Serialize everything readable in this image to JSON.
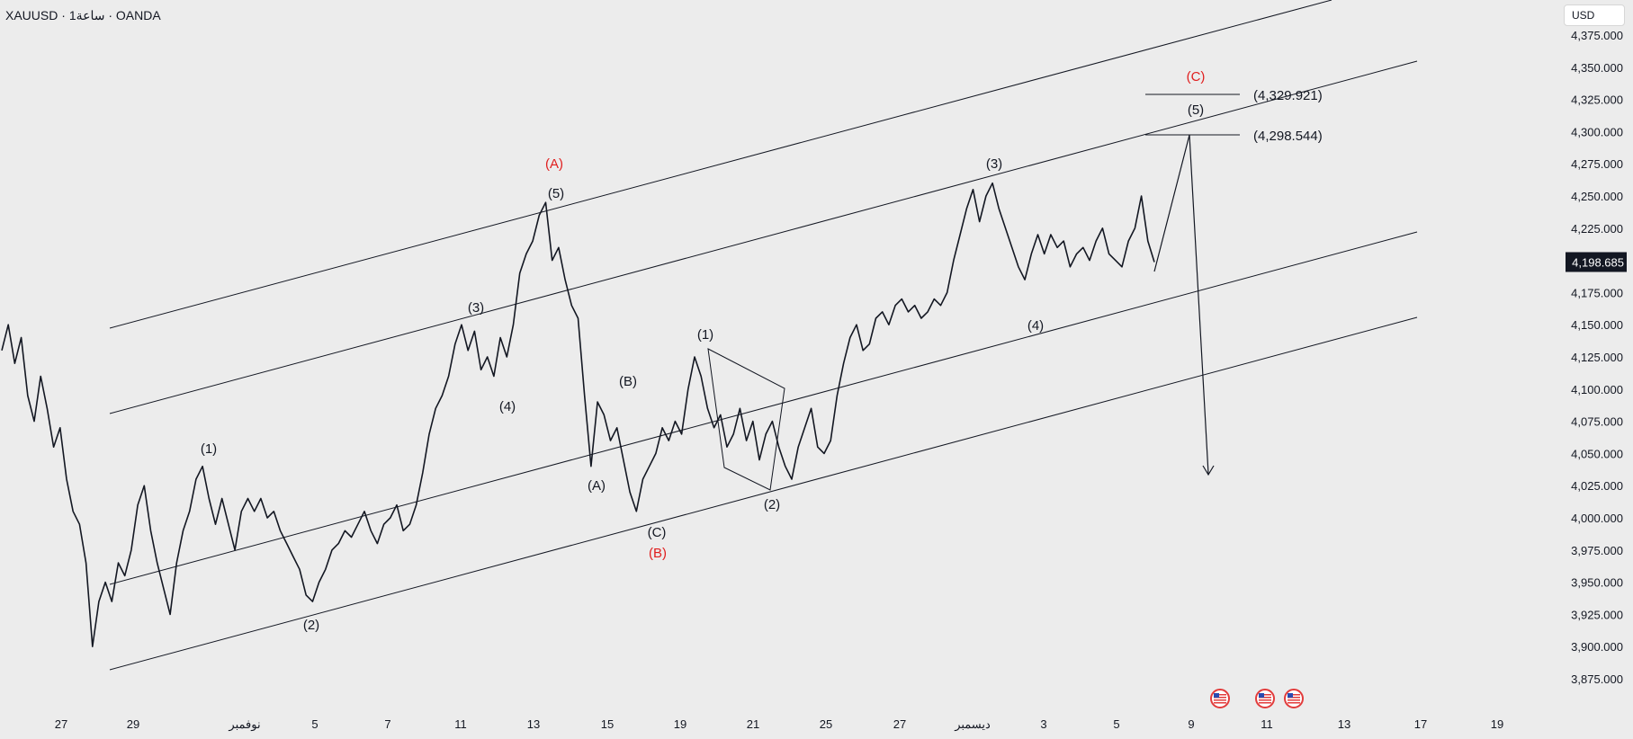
{
  "header": {
    "symbol": "XAUUSD",
    "sep1": "·",
    "interval": "1ساعة",
    "sep2": "·",
    "broker": "OANDA"
  },
  "currency_label": "USD",
  "last_price_label": "4,198.685",
  "colors": {
    "background": "#ececec",
    "price_line": "#131722",
    "drawing": "#131722",
    "label_black": "#131722",
    "label_red": "#e01e1e",
    "axis_text": "#131722",
    "last_price_bg": "#131722",
    "last_price_text": "#ffffff",
    "event_icon_flag": "#e23b3b"
  },
  "chart_data": {
    "type": "line",
    "x_axis_ticks": [
      "27",
      "29",
      "نوفمبر",
      "5",
      "7",
      "11",
      "13",
      "15",
      "19",
      "21",
      "25",
      "27",
      "ديسمبر",
      "3",
      "5",
      "9",
      "11",
      "13",
      "17",
      "19"
    ],
    "y_axis_ticks": [
      "4,375.000",
      "4,350.000",
      "4,325.000",
      "4,300.000",
      "4,275.000",
      "4,250.000",
      "4,225.000",
      "4,200.000",
      "4,175.000",
      "4,150.000",
      "4,125.000",
      "4,100.000",
      "4,075.000",
      "4,050.000",
      "4,025.000",
      "4,000.000",
      "3,975.000",
      "3,950.000",
      "3,925.000",
      "3,900.000",
      "3,875.000"
    ],
    "ylim": [
      3864,
      4390
    ],
    "series": [
      {
        "values": [
          4130,
          4150,
          4120,
          4140,
          4095,
          4075,
          4110,
          4085,
          4055,
          4070,
          4030,
          4005,
          3995,
          3965,
          3900,
          3935,
          3950,
          3935,
          3965,
          3955,
          3975,
          4010,
          4025,
          3990,
          3965,
          3945,
          3925,
          3965,
          3990,
          4005,
          4030,
          4040,
          4015,
          3995,
          4015,
          3995,
          3975,
          4005,
          4015,
          4005,
          4015,
          4000,
          4005,
          3990,
          3980,
          3970,
          3960,
          3940,
          3935,
          3950,
          3960,
          3975,
          3980,
          3990,
          3985,
          3995,
          4005,
          3990,
          3980,
          3995,
          4000,
          4010,
          3990,
          3995,
          4010,
          4035,
          4065,
          4085,
          4095,
          4110,
          4135,
          4150,
          4130,
          4145,
          4115,
          4125,
          4110,
          4140,
          4125,
          4150,
          4190,
          4205,
          4215,
          4235,
          4245,
          4200,
          4210,
          4185,
          4165,
          4155,
          4095,
          4040,
          4090,
          4080,
          4060,
          4070,
          4045,
          4020,
          4005,
          4030,
          4040,
          4050,
          4070,
          4060,
          4075,
          4065,
          4100,
          4125,
          4110,
          4085,
          4070,
          4080,
          4055,
          4065,
          4085,
          4060,
          4075,
          4045,
          4065,
          4075,
          4055,
          4040,
          4030,
          4055,
          4070,
          4085,
          4055,
          4050,
          4060,
          4095,
          4120,
          4140,
          4150,
          4130,
          4135,
          4155,
          4160,
          4150,
          4165,
          4170,
          4160,
          4165,
          4155,
          4160,
          4170,
          4165,
          4175,
          4200,
          4220,
          4240,
          4255,
          4230,
          4250,
          4260,
          4240,
          4225,
          4210,
          4195,
          4185,
          4205,
          4220,
          4205,
          4220,
          4210,
          4215,
          4195,
          4205,
          4210,
          4200,
          4215,
          4225,
          4205,
          4200,
          4195,
          4215,
          4225,
          4250,
          4215,
          4198.685
        ]
      }
    ]
  },
  "drawings": {
    "label_c_red_top": "(C)",
    "label_5_top": "(5)",
    "level_high": "(4,329.921)",
    "level_low": "(4,298.544)",
    "label_a_red": "(A)",
    "label_5_a": "(5)",
    "label_3_left": "(3)",
    "label_4_left": "(4)",
    "label_1_left": "(1)",
    "label_2_left": "(2)",
    "label_b_black": "(B)",
    "label_a_black": "(A)",
    "label_c_black": "(C)",
    "label_b_red": "(B)",
    "label_1_mid": "(1)",
    "label_2_mid": "(2)",
    "label_3_right": "(3)",
    "label_4_right": "(4)"
  },
  "event_icons": [
    "us-flag-icon",
    "us-flag-icon",
    "us-flag-icon"
  ]
}
